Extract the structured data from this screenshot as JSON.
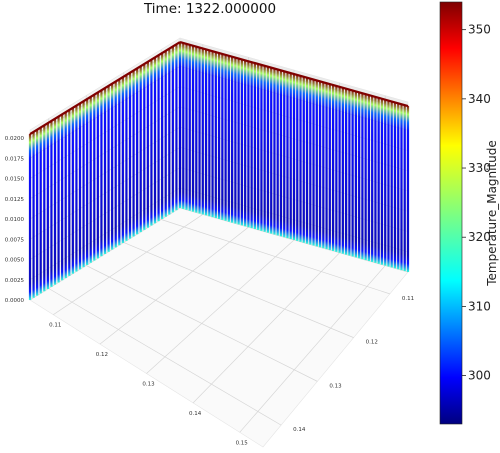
{
  "chart_data": {
    "type": "scatter",
    "projection": "3d",
    "title": "Time: 1322.000000",
    "grid": true,
    "x_ticks": [
      "0.11",
      "0.12",
      "0.13",
      "0.14",
      "0.15"
    ],
    "y_ticks": [
      "0.11",
      "0.12",
      "0.13",
      "0.14"
    ],
    "z_ticks": [
      "0.0000",
      "0.0025",
      "0.0050",
      "0.0075",
      "0.0100",
      "0.0125",
      "0.0150",
      "0.0175",
      "0.0200"
    ],
    "xlim": [
      0.105,
      0.155
    ],
    "ylim": [
      0.105,
      0.145
    ],
    "zlim": [
      0.0,
      0.021
    ],
    "colorbar": {
      "label": "Temperature_Magnitude",
      "colormap": "jet",
      "range": [
        293,
        354
      ],
      "ticks": [
        "300",
        "310",
        "320",
        "330",
        "340",
        "350"
      ]
    },
    "series": [
      {
        "wall": "x = 0.105 (left wall)",
        "y_range": [
          0.105,
          0.145
        ],
        "z_range": [
          0.0,
          0.0205
        ],
        "temperature_profile": "hot at top (~354), cools to ~296 in interior, warms to ~318 at bottom edge"
      },
      {
        "wall": "y = 0.105 (back wall)",
        "x_range": [
          0.105,
          0.155
        ],
        "z_range": [
          0.0,
          0.0205
        ],
        "temperature_profile": "hot at top (~354), cools to ~296 in interior, warms to ~318 at bottom edge"
      }
    ]
  }
}
